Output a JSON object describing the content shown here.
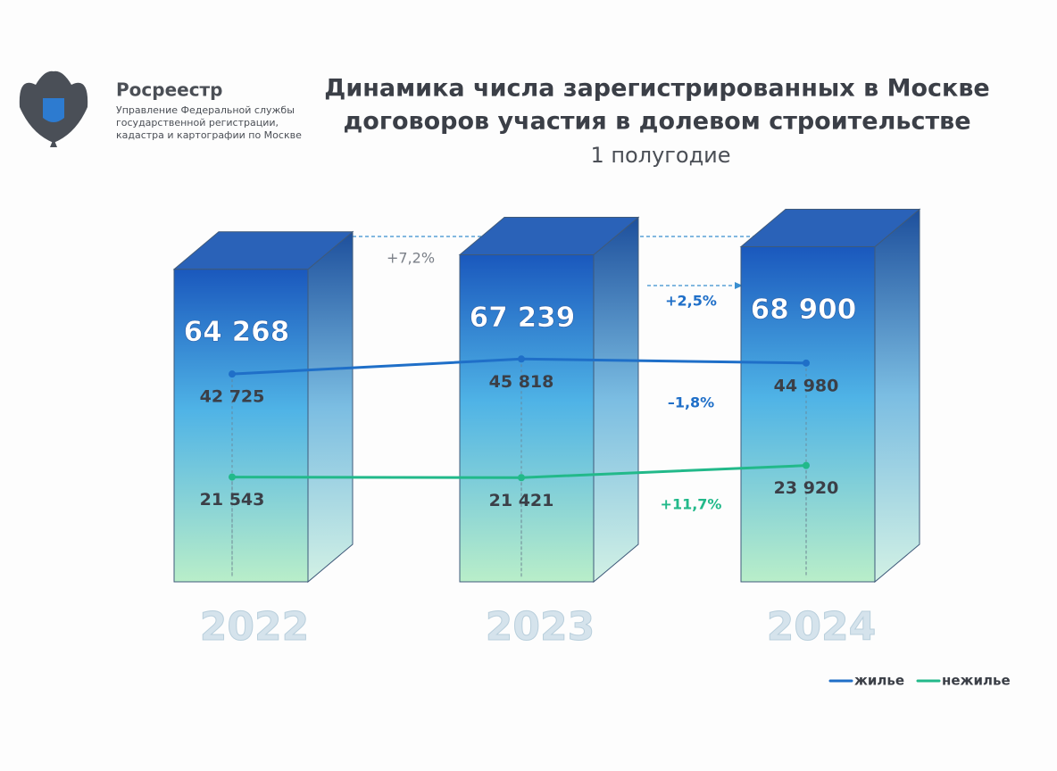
{
  "header": {
    "org": "Росреестр",
    "org_lines": [
      "Управление Федеральной службы",
      "государственной регистрации,",
      "кадастра и картографии по Москве"
    ]
  },
  "chart_data": {
    "type": "bar",
    "title": [
      "Динамика числа зарегистрированных в Москве",
      "договоров участия в долевом строительстве"
    ],
    "subtitle": "1 полугодие",
    "categories": [
      "2022",
      "2023",
      "2024"
    ],
    "values": [
      64268,
      67239,
      68900
    ],
    "value_labels": [
      "64 268",
      "67 239",
      "68 900"
    ],
    "series": [
      {
        "name": "жилье",
        "color": "#1f6fc8",
        "values": [
          42725,
          45818,
          44980
        ],
        "value_labels": [
          "42 725",
          "45 818",
          "44 980"
        ]
      },
      {
        "name": "нежилье",
        "color": "#22b98a",
        "values": [
          21543,
          21421,
          23920
        ],
        "value_labels": [
          "21 543",
          "21 421",
          "23 920"
        ]
      }
    ],
    "annotations": [
      "+7,2%",
      "+2,5%",
      "–1,8%",
      "+11,7%"
    ],
    "legend": "bottom-right"
  }
}
